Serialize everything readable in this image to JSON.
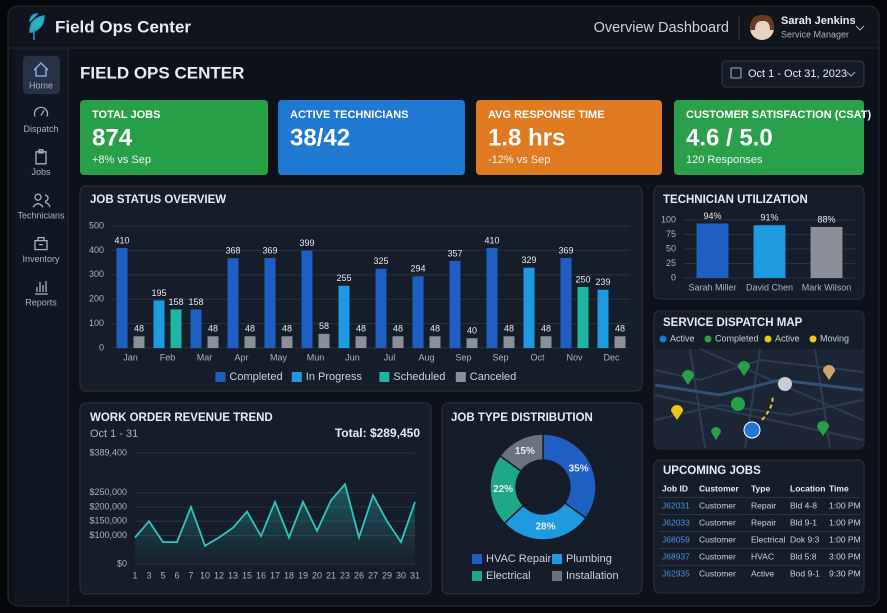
{
  "app": {
    "title": "Field Ops Center",
    "page": "Overview Dashboard",
    "user": {
      "name": "Sarah Jenkins",
      "role": "Service Manager"
    }
  },
  "nav": [
    "Home",
    "Dispatch",
    "Jobs",
    "Technicians",
    "Inventory",
    "Reports"
  ],
  "heading": "FIELD OPS CENTER",
  "date_range": "Oct 1 - Oct 31, 2023",
  "kpis": [
    {
      "label": "TOTAL JOBS",
      "value": "874",
      "sub": "+8% vs Sep",
      "color": "#27a048"
    },
    {
      "label": "ACTIVE TECHNICIANS",
      "value": "38/42",
      "color": "#1f78d1"
    },
    {
      "label": "AVG RESPONSE TIME",
      "value": "1.8 hrs",
      "sub": "-12% vs Sep",
      "color": "#e07a20"
    },
    {
      "label": "CUSTOMER SATISFACTION (CSAT)",
      "value": "4.6 / 5.0",
      "sub": "120 Responses",
      "color": "#2aa04a"
    }
  ],
  "chart_data": [
    {
      "type": "bar",
      "title": "JOB STATUS OVERVIEW",
      "categories": [
        "Jan",
        "Feb",
        "Mar",
        "Apr",
        "May",
        "Mun",
        "Jun",
        "Jul",
        "Aug",
        "Sep",
        "Sep",
        "Oct",
        "Nov",
        "Dec"
      ],
      "series": [
        {
          "name": "Completed",
          "color": "#1f5fc4",
          "values": [
            410,
            null,
            158,
            368,
            369,
            399,
            null,
            325,
            294,
            357,
            410,
            null,
            369,
            null
          ]
        },
        {
          "name": "In Progress",
          "color": "#1e9be0",
          "values": [
            null,
            195,
            null,
            null,
            null,
            null,
            255,
            null,
            null,
            null,
            null,
            329,
            null,
            239
          ]
        },
        {
          "name": "Scheduled",
          "color": "#1fb5a5",
          "values": [
            null,
            158,
            null,
            null,
            null,
            null,
            null,
            null,
            null,
            null,
            null,
            null,
            250,
            null
          ]
        },
        {
          "name": "Canceled",
          "color": "#8a8f98",
          "values": [
            48,
            null,
            48,
            48,
            48,
            58,
            48,
            48,
            48,
            40,
            48,
            48,
            null,
            48
          ]
        }
      ],
      "ylim": [
        0,
        500
      ],
      "yticks": [
        0,
        100,
        200,
        300,
        400,
        500
      ],
      "grid": true,
      "legend": "bottom"
    },
    {
      "type": "bar",
      "title": "TECHNICIAN UTILIZATION",
      "categories": [
        "Sarah Miller",
        "David Chen",
        "Mark Wilson"
      ],
      "values": [
        94,
        91,
        88
      ],
      "value_labels": [
        "94%",
        "91%",
        "88%"
      ],
      "colors": [
        "#1f5fc4",
        "#1e9be0",
        "#8a8f98"
      ],
      "ylim": [
        0,
        100
      ],
      "yticks": [
        0,
        25,
        50,
        75,
        100
      ],
      "grid": true
    },
    {
      "type": "line",
      "title": "WORK ORDER REVENUE TREND",
      "subtitle": "Oct 1 - 31",
      "annotation": "Total: $289,450",
      "categories": [
        "1",
        "3",
        "5",
        "6",
        "7",
        "10",
        "12",
        "13",
        "15",
        "16",
        "17",
        "18",
        "19",
        "20",
        "21",
        "23",
        "26",
        "27",
        "29",
        "30",
        "31"
      ],
      "values": [
        93000,
        150000,
        77000,
        77000,
        200000,
        64000,
        93000,
        127000,
        184000,
        98000,
        218000,
        93000,
        218000,
        116000,
        223000,
        280000,
        93000,
        241000,
        150000,
        77000,
        218000
      ],
      "color": "#2fc6c0",
      "ylim": [
        0,
        389400
      ],
      "yticks": [
        {
          "value": 0,
          "label": "$0"
        },
        {
          "value": 100000,
          "label": "$100,000"
        },
        {
          "value": 150000,
          "label": "$150,000"
        },
        {
          "value": 200000,
          "label": "$200,000"
        },
        {
          "value": 250000,
          "label": "$250,000"
        },
        {
          "value": 389400,
          "label": "$389,400"
        }
      ],
      "grid": true
    },
    {
      "type": "pie",
      "donut": true,
      "title": "JOB TYPE DISTRIBUTION",
      "categories": [
        "HVAC Repair",
        "Plumbing",
        "Electrical",
        "Installation"
      ],
      "values": [
        35,
        28,
        22,
        15
      ],
      "value_labels": [
        "35%",
        "28%",
        "22%",
        "15%"
      ],
      "colors": [
        "#1f5fc4",
        "#1e9be0",
        "#1fa888",
        "#6b7280"
      ],
      "legend": "bottom"
    }
  ],
  "service_map": {
    "title": "SERVICE DISPATCH MAP",
    "legend": [
      {
        "label": "Active",
        "color": "#1e78d8"
      },
      {
        "label": "Completed",
        "color": "#27a048"
      },
      {
        "label": "Active",
        "color": "#f0c419"
      },
      {
        "label": "Moving",
        "color": "#f0c419"
      }
    ]
  },
  "upcoming_jobs": {
    "title": "UPCOMING JOBS",
    "columns": [
      "Job ID",
      "Customer",
      "Type",
      "Location",
      "Time"
    ],
    "rows": [
      [
        "J62031",
        "Customer",
        "Repair",
        "Bld 4-8",
        "1:00 PM"
      ],
      [
        "J62033",
        "Customer",
        "Repair",
        "Bld 9-1",
        "1:00 PM"
      ],
      [
        "J68059",
        "Customer",
        "Electrical",
        "Dok 9:3",
        "1:00 PM"
      ],
      [
        "J68937",
        "Customer",
        "HVAC",
        "Bld 5:8",
        "3:00 PM"
      ],
      [
        "J62935",
        "Customer",
        "Active",
        "Bod 9-1",
        "9:30 PM"
      ]
    ]
  }
}
